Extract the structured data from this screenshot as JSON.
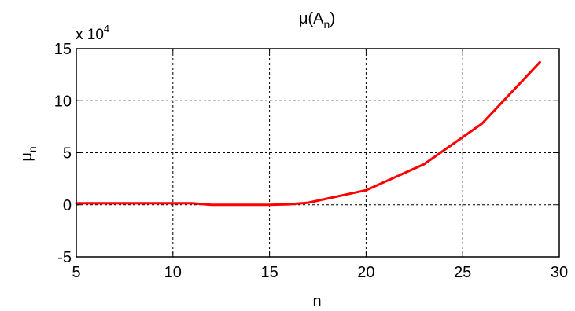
{
  "chart_data": {
    "type": "line",
    "title_prefix": "μ(A",
    "title_sub": "n",
    "title_suffix": ")",
    "xlabel": "n",
    "ylabel_main": "μ",
    "ylabel_sub": "n",
    "y_multiplier_base": "x 10",
    "y_multiplier_exp": "4",
    "xlim": [
      5,
      30
    ],
    "ylim": [
      -5,
      15
    ],
    "x_ticks": [
      5,
      10,
      15,
      20,
      25,
      30
    ],
    "y_ticks": [
      -5,
      0,
      5,
      10,
      15
    ],
    "x_tick_labels": [
      "5",
      "10",
      "15",
      "20",
      "25",
      "30"
    ],
    "y_tick_labels": [
      "-5",
      "0",
      "5",
      "10",
      "15"
    ],
    "grid": true,
    "series": [
      {
        "color": "#ff0000",
        "x": [
          5,
          11,
          12,
          15,
          16,
          17,
          20,
          23,
          26,
          29
        ],
        "y": [
          0.15,
          0.15,
          0.0,
          0.0,
          0.05,
          0.2,
          1.4,
          3.9,
          7.8,
          13.7
        ]
      }
    ]
  }
}
